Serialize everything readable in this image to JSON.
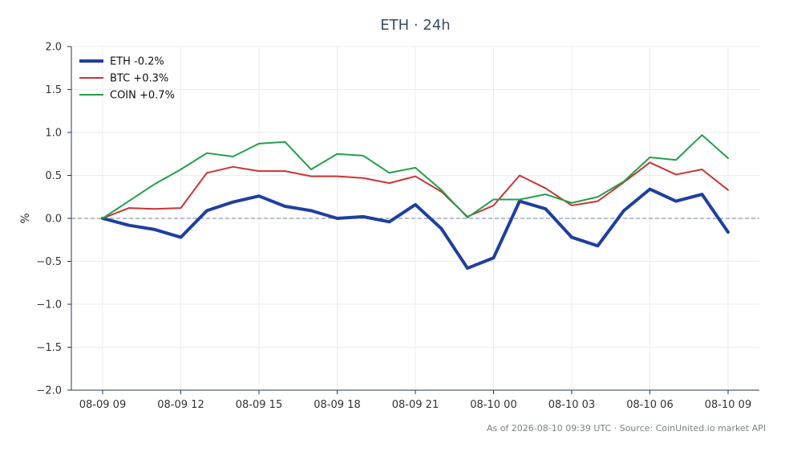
{
  "chart_data": {
    "type": "line",
    "title": "ETH · 24h",
    "xlabel": "",
    "ylabel": "%",
    "ylim": [
      -2.0,
      2.0
    ],
    "yticks": [
      2.0,
      1.5,
      1.0,
      0.5,
      0.0,
      -0.5,
      -1.0,
      -1.5,
      -2.0
    ],
    "ytick_labels": [
      "2.0",
      "1.5",
      "1.0",
      "0.5",
      "0.0",
      "−0.5",
      "−1.0",
      "−1.5",
      "−2.0"
    ],
    "x_range_hours": [
      -1.2,
      25.2
    ],
    "x": [
      0,
      1,
      2,
      3,
      4,
      5,
      6,
      7,
      8,
      9,
      10,
      11,
      12,
      13,
      14,
      15,
      16,
      17,
      18,
      19,
      20,
      21,
      22,
      23,
      24
    ],
    "x_ticks": [
      0,
      3,
      6,
      9,
      12,
      15,
      18,
      21,
      24
    ],
    "x_tick_labels": [
      "08-09 09",
      "08-09 12",
      "08-09 15",
      "08-09 18",
      "08-09 21",
      "08-10 00",
      "08-10 03",
      "08-10 06",
      "08-10 09"
    ],
    "grid": true,
    "zero_line": true,
    "legend_position": "top-left",
    "series": [
      {
        "name": "ETH -0.2%",
        "color": "#1f3f9e",
        "line_width": 4,
        "values": [
          0.0,
          -0.08,
          -0.13,
          -0.22,
          0.09,
          0.19,
          0.26,
          0.14,
          0.09,
          0.0,
          0.02,
          -0.04,
          0.16,
          -0.12,
          -0.58,
          -0.46,
          0.2,
          0.11,
          -0.22,
          -0.32,
          0.09,
          0.34,
          0.2,
          0.28,
          -0.16
        ]
      },
      {
        "name": "BTC +0.3%",
        "color": "#cc3333",
        "line_width": 2,
        "values": [
          0.0,
          0.12,
          0.11,
          0.12,
          0.53,
          0.6,
          0.55,
          0.55,
          0.49,
          0.49,
          0.47,
          0.41,
          0.49,
          0.31,
          0.02,
          0.15,
          0.5,
          0.35,
          0.15,
          0.2,
          0.42,
          0.65,
          0.51,
          0.57,
          0.33
        ]
      },
      {
        "name": "COIN +0.7%",
        "color": "#22a04a",
        "line_width": 2,
        "values": [
          0.0,
          0.2,
          0.4,
          0.57,
          0.76,
          0.72,
          0.87,
          0.89,
          0.57,
          0.75,
          0.73,
          0.53,
          0.59,
          0.33,
          0.01,
          0.22,
          0.22,
          0.28,
          0.18,
          0.25,
          0.43,
          0.71,
          0.68,
          0.97,
          0.7
        ]
      }
    ]
  },
  "footer": {
    "text": "As of 2026-08-10 09:39 UTC · Source: CoinUnited.io market API"
  }
}
